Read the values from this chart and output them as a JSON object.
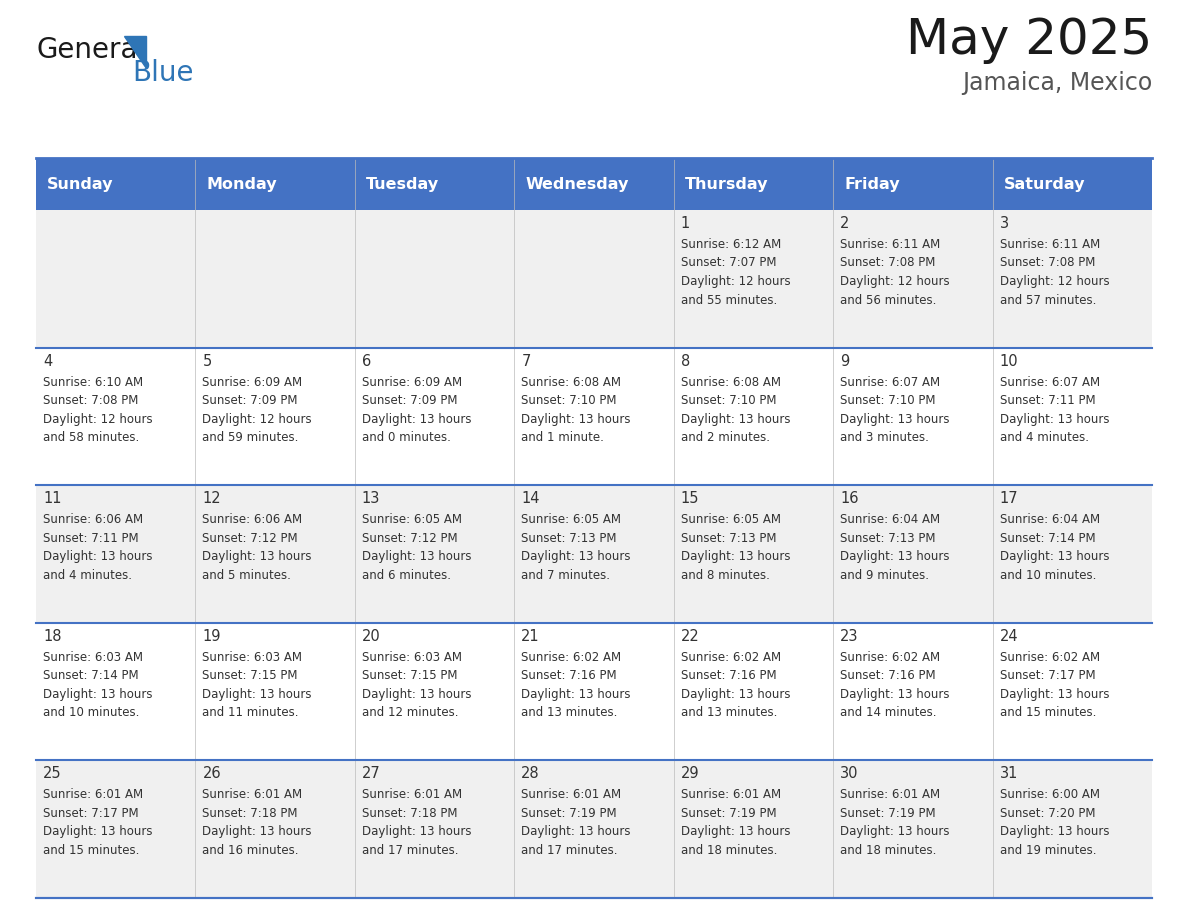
{
  "title": "May 2025",
  "subtitle": "Jamaica, Mexico",
  "days_of_week": [
    "Sunday",
    "Monday",
    "Tuesday",
    "Wednesday",
    "Thursday",
    "Friday",
    "Saturday"
  ],
  "header_bg": "#4472C4",
  "header_text_color": "#FFFFFF",
  "row_bg_odd": "#F0F0F0",
  "row_bg_even": "#FFFFFF",
  "cell_text_color": "#333333",
  "day_num_color": "#333333",
  "border_color": "#4472C4",
  "title_color": "#1a1a1a",
  "subtitle_color": "#555555",
  "logo_general_color": "#1a1a1a",
  "logo_blue_color": "#2E75B6",
  "calendar": [
    [
      {
        "day": "",
        "sunrise": "",
        "sunset": "",
        "daylight_l1": "",
        "daylight_l2": ""
      },
      {
        "day": "",
        "sunrise": "",
        "sunset": "",
        "daylight_l1": "",
        "daylight_l2": ""
      },
      {
        "day": "",
        "sunrise": "",
        "sunset": "",
        "daylight_l1": "",
        "daylight_l2": ""
      },
      {
        "day": "",
        "sunrise": "",
        "sunset": "",
        "daylight_l1": "",
        "daylight_l2": ""
      },
      {
        "day": "1",
        "sunrise": "6:12 AM",
        "sunset": "7:07 PM",
        "daylight_l1": "12 hours",
        "daylight_l2": "and 55 minutes."
      },
      {
        "day": "2",
        "sunrise": "6:11 AM",
        "sunset": "7:08 PM",
        "daylight_l1": "12 hours",
        "daylight_l2": "and 56 minutes."
      },
      {
        "day": "3",
        "sunrise": "6:11 AM",
        "sunset": "7:08 PM",
        "daylight_l1": "12 hours",
        "daylight_l2": "and 57 minutes."
      }
    ],
    [
      {
        "day": "4",
        "sunrise": "6:10 AM",
        "sunset": "7:08 PM",
        "daylight_l1": "12 hours",
        "daylight_l2": "and 58 minutes."
      },
      {
        "day": "5",
        "sunrise": "6:09 AM",
        "sunset": "7:09 PM",
        "daylight_l1": "12 hours",
        "daylight_l2": "and 59 minutes."
      },
      {
        "day": "6",
        "sunrise": "6:09 AM",
        "sunset": "7:09 PM",
        "daylight_l1": "13 hours",
        "daylight_l2": "and 0 minutes."
      },
      {
        "day": "7",
        "sunrise": "6:08 AM",
        "sunset": "7:10 PM",
        "daylight_l1": "13 hours",
        "daylight_l2": "and 1 minute."
      },
      {
        "day": "8",
        "sunrise": "6:08 AM",
        "sunset": "7:10 PM",
        "daylight_l1": "13 hours",
        "daylight_l2": "and 2 minutes."
      },
      {
        "day": "9",
        "sunrise": "6:07 AM",
        "sunset": "7:10 PM",
        "daylight_l1": "13 hours",
        "daylight_l2": "and 3 minutes."
      },
      {
        "day": "10",
        "sunrise": "6:07 AM",
        "sunset": "7:11 PM",
        "daylight_l1": "13 hours",
        "daylight_l2": "and 4 minutes."
      }
    ],
    [
      {
        "day": "11",
        "sunrise": "6:06 AM",
        "sunset": "7:11 PM",
        "daylight_l1": "13 hours",
        "daylight_l2": "and 4 minutes."
      },
      {
        "day": "12",
        "sunrise": "6:06 AM",
        "sunset": "7:12 PM",
        "daylight_l1": "13 hours",
        "daylight_l2": "and 5 minutes."
      },
      {
        "day": "13",
        "sunrise": "6:05 AM",
        "sunset": "7:12 PM",
        "daylight_l1": "13 hours",
        "daylight_l2": "and 6 minutes."
      },
      {
        "day": "14",
        "sunrise": "6:05 AM",
        "sunset": "7:13 PM",
        "daylight_l1": "13 hours",
        "daylight_l2": "and 7 minutes."
      },
      {
        "day": "15",
        "sunrise": "6:05 AM",
        "sunset": "7:13 PM",
        "daylight_l1": "13 hours",
        "daylight_l2": "and 8 minutes."
      },
      {
        "day": "16",
        "sunrise": "6:04 AM",
        "sunset": "7:13 PM",
        "daylight_l1": "13 hours",
        "daylight_l2": "and 9 minutes."
      },
      {
        "day": "17",
        "sunrise": "6:04 AM",
        "sunset": "7:14 PM",
        "daylight_l1": "13 hours",
        "daylight_l2": "and 10 minutes."
      }
    ],
    [
      {
        "day": "18",
        "sunrise": "6:03 AM",
        "sunset": "7:14 PM",
        "daylight_l1": "13 hours",
        "daylight_l2": "and 10 minutes."
      },
      {
        "day": "19",
        "sunrise": "6:03 AM",
        "sunset": "7:15 PM",
        "daylight_l1": "13 hours",
        "daylight_l2": "and 11 minutes."
      },
      {
        "day": "20",
        "sunrise": "6:03 AM",
        "sunset": "7:15 PM",
        "daylight_l1": "13 hours",
        "daylight_l2": "and 12 minutes."
      },
      {
        "day": "21",
        "sunrise": "6:02 AM",
        "sunset": "7:16 PM",
        "daylight_l1": "13 hours",
        "daylight_l2": "and 13 minutes."
      },
      {
        "day": "22",
        "sunrise": "6:02 AM",
        "sunset": "7:16 PM",
        "daylight_l1": "13 hours",
        "daylight_l2": "and 13 minutes."
      },
      {
        "day": "23",
        "sunrise": "6:02 AM",
        "sunset": "7:16 PM",
        "daylight_l1": "13 hours",
        "daylight_l2": "and 14 minutes."
      },
      {
        "day": "24",
        "sunrise": "6:02 AM",
        "sunset": "7:17 PM",
        "daylight_l1": "13 hours",
        "daylight_l2": "and 15 minutes."
      }
    ],
    [
      {
        "day": "25",
        "sunrise": "6:01 AM",
        "sunset": "7:17 PM",
        "daylight_l1": "13 hours",
        "daylight_l2": "and 15 minutes."
      },
      {
        "day": "26",
        "sunrise": "6:01 AM",
        "sunset": "7:18 PM",
        "daylight_l1": "13 hours",
        "daylight_l2": "and 16 minutes."
      },
      {
        "day": "27",
        "sunrise": "6:01 AM",
        "sunset": "7:18 PM",
        "daylight_l1": "13 hours",
        "daylight_l2": "and 17 minutes."
      },
      {
        "day": "28",
        "sunrise": "6:01 AM",
        "sunset": "7:19 PM",
        "daylight_l1": "13 hours",
        "daylight_l2": "and 17 minutes."
      },
      {
        "day": "29",
        "sunrise": "6:01 AM",
        "sunset": "7:19 PM",
        "daylight_l1": "13 hours",
        "daylight_l2": "and 18 minutes."
      },
      {
        "day": "30",
        "sunrise": "6:01 AM",
        "sunset": "7:19 PM",
        "daylight_l1": "13 hours",
        "daylight_l2": "and 18 minutes."
      },
      {
        "day": "31",
        "sunrise": "6:00 AM",
        "sunset": "7:20 PM",
        "daylight_l1": "13 hours",
        "daylight_l2": "and 19 minutes."
      }
    ]
  ]
}
